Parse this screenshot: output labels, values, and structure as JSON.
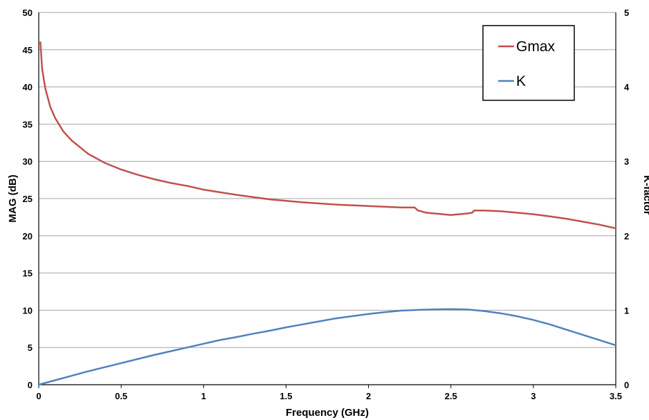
{
  "chart_data": {
    "type": "line",
    "xlabel": "Frequency (GHz)",
    "ylabel": "MAG (dB)",
    "y2label": "K-factor",
    "xlim": [
      0,
      3.5
    ],
    "ylim": [
      0,
      50
    ],
    "y2lim": [
      0,
      5
    ],
    "x_ticks": [
      "0",
      "0.5",
      "1",
      "1.5",
      "2",
      "2.5",
      "3",
      "3.5"
    ],
    "y_ticks": [
      "0",
      "5",
      "10",
      "15",
      "20",
      "25",
      "30",
      "35",
      "40",
      "45",
      "50"
    ],
    "y2_ticks": [
      "0",
      "1",
      "2",
      "3",
      "4",
      "5"
    ],
    "grid": "horizontal",
    "legend_position": "top-right",
    "series": [
      {
        "name": "Gmax",
        "axis": "left",
        "color": "#C0504D",
        "x": [
          0.01,
          0.02,
          0.04,
          0.07,
          0.1,
          0.15,
          0.2,
          0.3,
          0.4,
          0.5,
          0.6,
          0.7,
          0.8,
          0.9,
          1.0,
          1.2,
          1.4,
          1.6,
          1.8,
          2.0,
          2.2,
          2.28,
          2.3,
          2.35,
          2.4,
          2.45,
          2.5,
          2.55,
          2.6,
          2.63,
          2.64,
          2.66,
          2.7,
          2.8,
          2.9,
          3.0,
          3.1,
          3.2,
          3.3,
          3.4,
          3.5
        ],
        "values": [
          46,
          42.5,
          39.8,
          37.3,
          35.8,
          34.0,
          32.8,
          31.0,
          29.8,
          28.9,
          28.2,
          27.6,
          27.1,
          26.7,
          26.2,
          25.5,
          24.9,
          24.5,
          24.2,
          24.0,
          23.8,
          23.8,
          23.4,
          23.1,
          23.0,
          22.9,
          22.8,
          22.9,
          23.0,
          23.1,
          23.4,
          23.4,
          23.4,
          23.3,
          23.1,
          22.9,
          22.6,
          22.3,
          21.9,
          21.5,
          21.0
        ]
      },
      {
        "name": "K",
        "axis": "right",
        "color": "#4F81BD",
        "x": [
          0,
          0.1,
          0.2,
          0.3,
          0.4,
          0.5,
          0.6,
          0.7,
          0.8,
          0.9,
          1.0,
          1.1,
          1.2,
          1.3,
          1.4,
          1.5,
          1.6,
          1.7,
          1.8,
          1.9,
          2.0,
          2.1,
          2.2,
          2.3,
          2.4,
          2.5,
          2.6,
          2.7,
          2.8,
          2.9,
          3.0,
          3.1,
          3.2,
          3.3,
          3.4,
          3.5
        ],
        "values": [
          0,
          0.06,
          0.12,
          0.18,
          0.235,
          0.29,
          0.345,
          0.4,
          0.45,
          0.5,
          0.55,
          0.6,
          0.64,
          0.685,
          0.725,
          0.77,
          0.81,
          0.85,
          0.89,
          0.92,
          0.95,
          0.975,
          0.995,
          1.005,
          1.012,
          1.015,
          1.01,
          0.99,
          0.96,
          0.92,
          0.87,
          0.81,
          0.74,
          0.67,
          0.6,
          0.53
        ]
      }
    ]
  }
}
